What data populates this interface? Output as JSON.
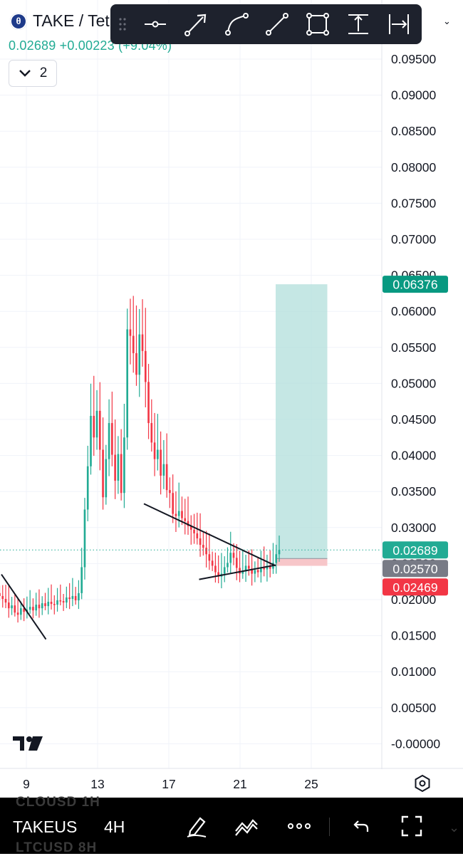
{
  "header": {
    "title": "TAKE / Tet",
    "price": "0.02689",
    "change": "+0.00223 (+9.04%)",
    "collapse_count": "2"
  },
  "toolbar": {
    "tools": [
      "horizontal-ray-tool",
      "arrow-tool",
      "curve-tool",
      "trend-line-tool",
      "rectangle-tool",
      "price-range-tool",
      "date-range-tool"
    ]
  },
  "bottom_bar": {
    "symbol": "TAKEUS",
    "interval": "4H",
    "ghost_items": [
      "CLOUSD 1H",
      "LTCUSD 8H"
    ]
  },
  "colors": {
    "up": "#22ab94",
    "down": "#f23645",
    "last_price": "#22ab94",
    "entry": "#787b86",
    "stop": "#f23645",
    "target": "#089981",
    "target_zone": "#b2dfdb",
    "stop_zone": "#f7c6c9"
  },
  "chart_data": {
    "type": "candlestick",
    "symbol": "TAKE / Tet",
    "interval": "4H",
    "ylim": [
      -0.001,
      0.0985
    ],
    "y_ticks": [
      "0.09500",
      "0.09000",
      "0.08500",
      "0.08000",
      "0.07500",
      "0.07000",
      "0.06500",
      "0.06000",
      "0.05500",
      "0.05000",
      "0.04500",
      "0.04000",
      "0.03500",
      "0.03000",
      "0.02500",
      "0.02000",
      "0.01500",
      "0.01000",
      "0.00500",
      "-0.00000"
    ],
    "y_tick_values": [
      0.095,
      0.09,
      0.085,
      0.08,
      0.075,
      0.07,
      0.065,
      0.06,
      0.055,
      0.05,
      0.045,
      0.04,
      0.035,
      0.03,
      0.025,
      0.02,
      0.015,
      0.01,
      0.005,
      0
    ],
    "x_ticks": [
      {
        "label": "9",
        "day": 9
      },
      {
        "label": "13",
        "day": 13
      },
      {
        "label": "17",
        "day": 17
      },
      {
        "label": "21",
        "day": 21
      },
      {
        "label": "25",
        "day": 25
      }
    ],
    "price_labels": [
      {
        "label": "0.06376",
        "value": 0.06376,
        "role": "target"
      },
      {
        "label": "0.02689",
        "value": 0.02689,
        "role": "last"
      },
      {
        "label": "0.02570",
        "value": 0.0257,
        "role": "entry"
      },
      {
        "label": "0.02469",
        "value": 0.02469,
        "role": "stop"
      }
    ],
    "last_price": 0.02689,
    "long_position": {
      "start_day": 23.0,
      "end_day": 25.9,
      "entry": 0.0257,
      "target": 0.06376,
      "stop": 0.02469
    },
    "trendlines": [
      {
        "from": [
          7.6,
          0.0235
        ],
        "to": [
          10.1,
          0.0145
        ]
      },
      {
        "from": [
          15.6,
          0.0333
        ],
        "to": [
          23.0,
          0.0247
        ]
      },
      {
        "from": [
          18.7,
          0.0228
        ],
        "to": [
          23.0,
          0.0248
        ]
      }
    ],
    "candle_days": [
      7.5,
      23.2
    ],
    "closes": [
      0.0205,
      0.0201,
      0.0196,
      0.0188,
      0.0192,
      0.0182,
      0.0179,
      0.0188,
      0.0183,
      0.0186,
      0.019,
      0.0185,
      0.0193,
      0.0188,
      0.0195,
      0.0191,
      0.0197,
      0.0194,
      0.0193,
      0.0199,
      0.0198,
      0.0196,
      0.0203,
      0.0201,
      0.0205,
      0.0199,
      0.0209,
      0.0245,
      0.0325,
      0.0385,
      0.0455,
      0.0425,
      0.0462,
      0.0408,
      0.0342,
      0.0395,
      0.0445,
      0.0401,
      0.0365,
      0.0402,
      0.0348,
      0.0425,
      0.0575,
      0.0566,
      0.0542,
      0.0512,
      0.0568,
      0.0545,
      0.0502,
      0.0445,
      0.0418,
      0.0395,
      0.0408,
      0.0372,
      0.0388,
      0.0352,
      0.0348,
      0.0319,
      0.0316,
      0.0323,
      0.0313,
      0.0309,
      0.0302,
      0.0297,
      0.0292,
      0.0285,
      0.0276,
      0.0272,
      0.0263,
      0.0254,
      0.0247,
      0.0238,
      0.0232,
      0.0236,
      0.0245,
      0.0251,
      0.0265,
      0.0258,
      0.0244,
      0.0236,
      0.0239,
      0.0247,
      0.0243,
      0.0236,
      0.0241,
      0.0238,
      0.0244,
      0.0242,
      0.0247,
      0.0243,
      0.0251,
      0.0263,
      0.0269
    ]
  }
}
